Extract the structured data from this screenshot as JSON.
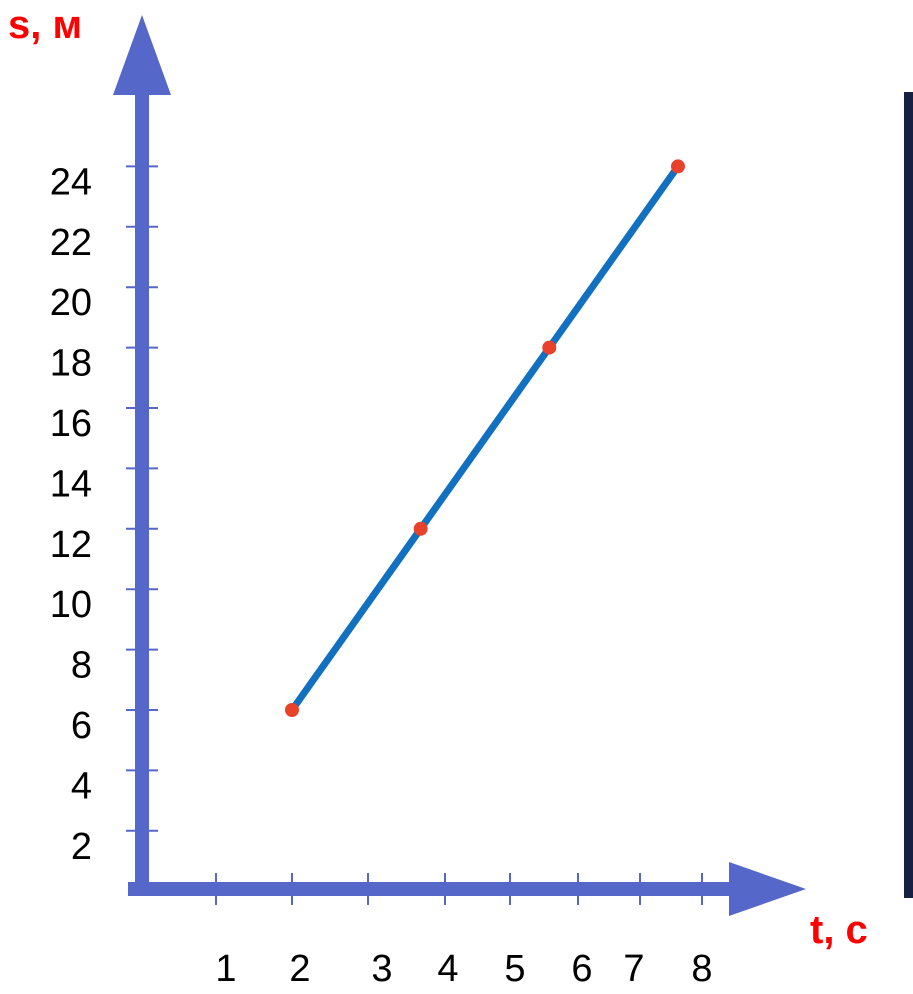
{
  "colors": {
    "axis": "#5567c8",
    "line": "#1170c0",
    "point": "#e8412c",
    "axis_title": "#ff0000",
    "tick_label": "#000000",
    "side_bar": "#16213f"
  },
  "chart_data": {
    "type": "line",
    "xlabel": "t, c",
    "ylabel": "s, м",
    "x_ticks": [
      "1",
      "2",
      "3",
      "4",
      "5",
      "6",
      "7",
      "8"
    ],
    "y_ticks": [
      "2",
      "4",
      "6",
      "8",
      "10",
      "12",
      "14",
      "16",
      "18",
      "20",
      "22",
      "24"
    ],
    "series": [
      {
        "points": [
          {
            "x": 2,
            "y": 6
          },
          {
            "x": 4,
            "y": 12
          },
          {
            "x": 6,
            "y": 18
          },
          {
            "x": 8,
            "y": 24
          }
        ]
      }
    ],
    "markers": true,
    "grid": false
  }
}
